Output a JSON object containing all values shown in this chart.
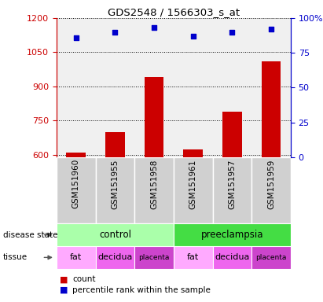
{
  "title": "GDS2548 / 1566303_s_at",
  "samples": [
    "GSM151960",
    "GSM151955",
    "GSM151958",
    "GSM151961",
    "GSM151957",
    "GSM151959"
  ],
  "bar_values": [
    610,
    700,
    940,
    622,
    790,
    1010
  ],
  "scatter_values": [
    86,
    90,
    93,
    87,
    90,
    92
  ],
  "ylim_left": [
    590,
    1200
  ],
  "ylim_right": [
    0,
    100
  ],
  "yticks_left": [
    600,
    750,
    900,
    1050,
    1200
  ],
  "yticks_right": [
    0,
    25,
    50,
    75,
    100
  ],
  "bar_color": "#cc0000",
  "scatter_color": "#0000cc",
  "disease_state": [
    {
      "label": "control",
      "span": [
        0,
        3
      ],
      "color": "#aaffaa"
    },
    {
      "label": "preeclampsia",
      "span": [
        3,
        6
      ],
      "color": "#44dd44"
    }
  ],
  "tissue": [
    {
      "label": "fat",
      "span": [
        0,
        1
      ],
      "color": "#ffaaff"
    },
    {
      "label": "decidua",
      "span": [
        1,
        2
      ],
      "color": "#ee66ee"
    },
    {
      "label": "placenta",
      "span": [
        2,
        3
      ],
      "color": "#cc44cc"
    },
    {
      "label": "fat",
      "span": [
        3,
        4
      ],
      "color": "#ffaaff"
    },
    {
      "label": "decidua",
      "span": [
        4,
        5
      ],
      "color": "#ee66ee"
    },
    {
      "label": "placenta",
      "span": [
        5,
        6
      ],
      "color": "#cc44cc"
    }
  ],
  "legend_count_color": "#cc0000",
  "legend_pct_color": "#0000cc",
  "axis_color_left": "#cc0000",
  "axis_color_right": "#0000cc",
  "background_color": "#ffffff",
  "plot_bg_color": "#f0f0f0",
  "xticklabel_bg": "#d0d0d0"
}
